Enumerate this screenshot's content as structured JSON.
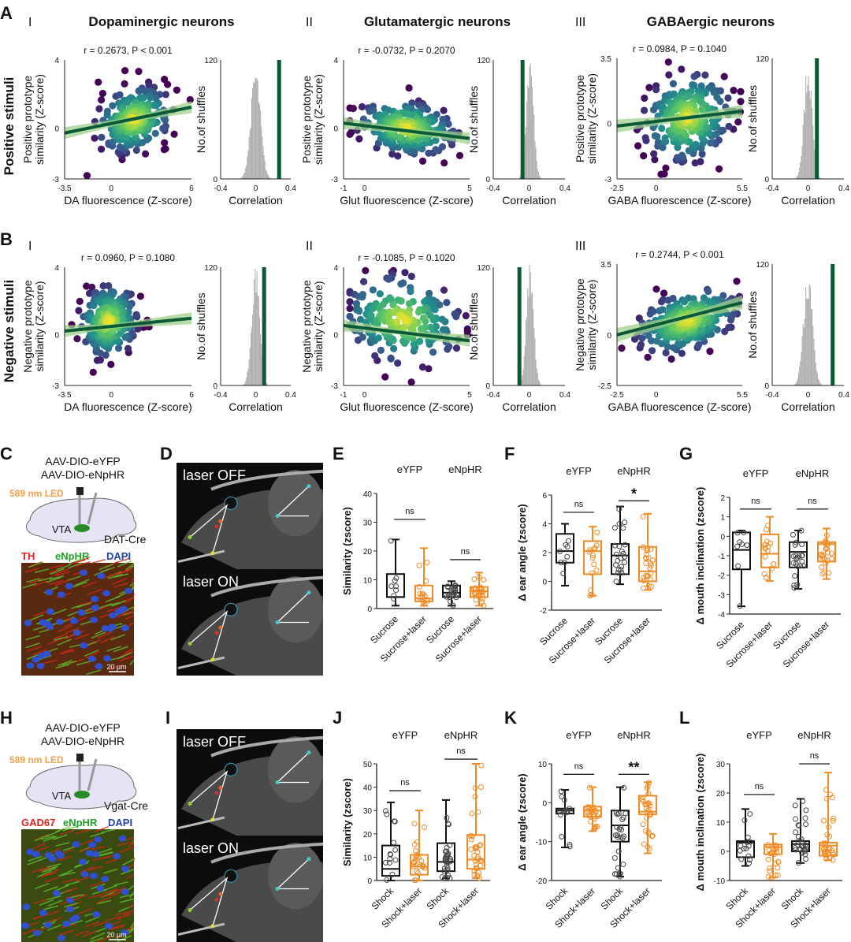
{
  "panel_letters": [
    "A",
    "B",
    "C",
    "D",
    "E",
    "F",
    "G",
    "H",
    "I",
    "J",
    "K",
    "L"
  ],
  "row_labels": {
    "A": "Positive stimuli",
    "B": "Negative stimuli"
  },
  "column_headers": [
    {
      "roman": "I",
      "title": "Dopaminergic neurons"
    },
    {
      "roman": "II",
      "title": "Glutamatergic neurons"
    },
    {
      "roman": "III",
      "title": "GABAergic neurons"
    }
  ],
  "colors": {
    "fit_line": "#0b5a36",
    "ci_band": "#9fcf8c",
    "hist": "#b0b0b0",
    "observed": "#0b5a36",
    "eyfp": "#111111",
    "enphr": "#f08a24",
    "led": "#f5a04a"
  },
  "chart_data": [
    {
      "id": "A-I",
      "type": "scatter",
      "stat": "r = 0.2673, P < 0.001",
      "xlabel": "DA fluorescence (Z-score)",
      "ylabel": [
        "Positive prototype",
        "similarity (Z-score)"
      ],
      "xlim": [
        -3.5,
        6
      ],
      "ylim": [
        -3,
        4
      ],
      "xticks": [
        -3.5,
        0,
        6
      ],
      "yticks": [
        4,
        0,
        -3
      ],
      "fit": {
        "slope": 0.16,
        "intercept": 0.26
      },
      "cloud": {
        "cx": 1.7,
        "cy": 0.5,
        "sx": 1.3,
        "sy": 0.9,
        "n": 260
      },
      "hist": {
        "type": "histogram",
        "xlabel": "Correlation",
        "ylabel": "No.of shuffles",
        "xlim": [
          -0.4,
          0.4
        ],
        "ylim": [
          0,
          120
        ],
        "xticks": [
          -0.4,
          0,
          0.4
        ],
        "yticks": [
          120,
          0
        ],
        "null_mean": 0.0,
        "null_sd": 0.055,
        "peak": 100,
        "observed_r": 0.2673
      }
    },
    {
      "id": "A-II",
      "type": "scatter",
      "stat": "r = -0.0732, P = 0.2070",
      "xlabel": "Glut fluorescence (Z-score)",
      "ylabel": [
        "Positive prototype",
        "similarity (Z-score)"
      ],
      "xlim": [
        -1,
        5
      ],
      "ylim": [
        -3,
        4
      ],
      "xticks": [
        -1,
        0,
        5
      ],
      "yticks": [
        4,
        0,
        -3
      ],
      "fit": {
        "slope": -0.15,
        "intercept": 0.13
      },
      "cloud": {
        "cx": 2.0,
        "cy": 0.0,
        "sx": 1.1,
        "sy": 0.75,
        "n": 260
      },
      "hist": {
        "type": "histogram",
        "xlabel": "Correlation",
        "ylabel": "No.of shuffles",
        "xlim": [
          -0.4,
          0.4
        ],
        "ylim": [
          0,
          120
        ],
        "xticks": [
          -0.4,
          0,
          0.4
        ],
        "yticks": [
          120,
          0
        ],
        "null_mean": 0.01,
        "null_sd": 0.04,
        "peak": 110,
        "observed_r": -0.0732
      }
    },
    {
      "id": "A-III",
      "type": "scatter",
      "stat": "r = 0.0984, P = 0.1040",
      "xlabel": "GABA fluorescence (Z-score)",
      "ylabel": [
        "Positive prototype",
        "similarity (Z-score)"
      ],
      "xlim": [
        -2.5,
        5.5
      ],
      "ylim": [
        -3,
        3.5
      ],
      "xticks": [
        -2.5,
        0,
        5.5
      ],
      "yticks": [
        3.5,
        0,
        -3
      ],
      "fit": {
        "slope": 0.1,
        "intercept": 0.1
      },
      "cloud": {
        "cx": 2.0,
        "cy": 0.3,
        "sx": 1.3,
        "sy": 1.1,
        "n": 260
      },
      "hist": {
        "type": "histogram",
        "xlabel": "Correlation",
        "ylabel": "No.of shuffles",
        "xlim": [
          -0.4,
          0.4
        ],
        "ylim": [
          0,
          120
        ],
        "xticks": [
          -0.4,
          0,
          0.4
        ],
        "yticks": [
          120,
          0
        ],
        "null_mean": 0.0,
        "null_sd": 0.045,
        "peak": 105,
        "observed_r": 0.0984
      }
    },
    {
      "id": "B-I",
      "type": "scatter",
      "stat": "r = 0.0960, P = 0.1080",
      "xlabel": "DA fluorescence (Z-score)",
      "ylabel": [
        "Negative prototype",
        "similarity (Z-score)"
      ],
      "xlim": [
        -3.5,
        6
      ],
      "ylim": [
        -3,
        4
      ],
      "xticks": [
        -3.5,
        0,
        6
      ],
      "yticks": [
        4,
        0,
        -3
      ],
      "fit": {
        "slope": 0.08,
        "intercept": 0.5
      },
      "cloud": {
        "cx": -0.2,
        "cy": 0.8,
        "sx": 1.0,
        "sy": 1.0,
        "n": 240
      },
      "hist": {
        "type": "histogram",
        "xlabel": "Correlation",
        "ylabel": "No.of shuffles",
        "xlim": [
          -0.4,
          0.4
        ],
        "ylim": [
          0,
          120
        ],
        "xticks": [
          -0.4,
          0,
          0.4
        ],
        "yticks": [
          120,
          0
        ],
        "null_mean": 0.0,
        "null_sd": 0.045,
        "peak": 110,
        "observed_r": 0.096
      }
    },
    {
      "id": "B-II",
      "type": "scatter",
      "stat": "r = -0.1085, P = 0.1020",
      "xlabel": "Glut fluorescence (Z-score)",
      "ylabel": [
        "Negative prototype",
        "similarity (Z-score)"
      ],
      "xlim": [
        -1,
        5
      ],
      "ylim": [
        -3,
        4
      ],
      "xticks": [
        -1,
        0,
        5
      ],
      "yticks": [
        4,
        0,
        -3
      ],
      "fit": {
        "slope": -0.15,
        "intercept": 0.4
      },
      "cloud": {
        "cx": 1.8,
        "cy": 0.9,
        "sx": 1.3,
        "sy": 1.2,
        "n": 220
      },
      "hist": {
        "type": "histogram",
        "xlabel": "Correlation",
        "ylabel": "No.of shuffles",
        "xlim": [
          -0.4,
          0.4
        ],
        "ylim": [
          0,
          120
        ],
        "xticks": [
          -0.4,
          0,
          0.4
        ],
        "yticks": [
          120,
          0
        ],
        "null_mean": 0.01,
        "null_sd": 0.04,
        "peak": 110,
        "observed_r": -0.1085
      }
    },
    {
      "id": "B-III",
      "type": "scatter",
      "stat": "r = 0.2744, P < 0.001",
      "xlabel": "GABA fluorescence (Z-score)",
      "ylabel": [
        "Negative prototype",
        "similarity (Z-score)"
      ],
      "xlim": [
        -2.5,
        5.5
      ],
      "ylim": [
        -2.5,
        3.5
      ],
      "xticks": [
        -2.5,
        0,
        5.5
      ],
      "yticks": [
        3.5,
        0,
        -2.5
      ],
      "fit": {
        "slope": 0.2,
        "intercept": 0.5
      },
      "cloud": {
        "cx": 2.0,
        "cy": 0.7,
        "sx": 1.5,
        "sy": 0.7,
        "n": 260
      },
      "hist": {
        "type": "histogram",
        "xlabel": "Correlation",
        "ylabel": "No.of shuffles",
        "xlim": [
          -0.4,
          0.4
        ],
        "ylim": [
          0,
          120
        ],
        "xticks": [
          -0.4,
          0,
          0.4
        ],
        "yticks": [
          120,
          0
        ],
        "null_mean": 0.0,
        "null_sd": 0.05,
        "peak": 100,
        "observed_r": 0.2744
      }
    },
    {
      "id": "E",
      "type": "box",
      "ylabel": "Similarity  (zscore)",
      "ylim": [
        0,
        40
      ],
      "yticks": [
        0,
        10,
        20,
        30,
        40
      ],
      "groups": [
        "eYFP",
        "eNpHR"
      ],
      "categories": [
        "Sucrose",
        "Sucrose+laser",
        "Sucrose",
        "Sucrose+laser"
      ],
      "boxes": [
        [
          1,
          4,
          4,
          12,
          24
        ],
        [
          1,
          2.5,
          3.5,
          8,
          21
        ],
        [
          1,
          4,
          5.5,
          8,
          9.5
        ],
        [
          1,
          4,
          6,
          7.5,
          12.5
        ]
      ],
      "n": [
        8,
        14,
        22,
        24
      ],
      "sig": [
        {
          "pair": [
            0,
            1
          ],
          "label": "ns",
          "y": 31
        },
        {
          "pair": [
            2,
            3
          ],
          "label": "ns",
          "y": 17
        }
      ]
    },
    {
      "id": "F",
      "type": "box",
      "ylabel": "Δ ear angle (zscore)",
      "ylim": [
        -2,
        6
      ],
      "yticks": [
        -2,
        0,
        2,
        4,
        6
      ],
      "groups": [
        "eYFP",
        "eNpHR"
      ],
      "categories": [
        "Sucrose",
        "Sucrose+laser",
        "Sucrose",
        "Sucrose+laser"
      ],
      "boxes": [
        [
          -0.3,
          1.3,
          2.1,
          3.3,
          4
        ],
        [
          -1,
          0.5,
          2.1,
          2.8,
          3.8
        ],
        [
          -0.2,
          0.5,
          1.8,
          2.6,
          5.2
        ],
        [
          -0.6,
          0,
          0.7,
          2.4,
          4.7
        ]
      ],
      "n": [
        8,
        14,
        22,
        24
      ],
      "sig": [
        {
          "pair": [
            0,
            1
          ],
          "label": "ns",
          "y": 4.8
        },
        {
          "pair": [
            2,
            3
          ],
          "label": "*",
          "y": 5.6
        }
      ]
    },
    {
      "id": "G",
      "type": "box",
      "ylabel": "Δ mouth inclination (zscore)",
      "ylim": [
        -4,
        2
      ],
      "yticks": [
        -4,
        -3,
        -2,
        -1,
        0,
        1,
        2
      ],
      "groups": [
        "eYFP",
        "eNpHR"
      ],
      "categories": [
        "Sucrose",
        "Sucrose+laser",
        "Sucrose",
        "Sucrose+laser"
      ],
      "boxes": [
        [
          -3.6,
          -1.7,
          -0.7,
          0.2,
          0.3
        ],
        [
          -2.3,
          -1.6,
          -0.9,
          0.1,
          1
        ],
        [
          -2.7,
          -1.6,
          -0.8,
          -0.3,
          0.3
        ],
        [
          -2.2,
          -1.3,
          -0.4,
          -0.3,
          0.4
        ]
      ],
      "n": [
        8,
        14,
        22,
        24
      ],
      "sig": [
        {
          "pair": [
            0,
            1
          ],
          "label": "ns",
          "y": 1.4
        },
        {
          "pair": [
            2,
            3
          ],
          "label": "ns",
          "y": 1.4
        }
      ]
    },
    {
      "id": "J",
      "type": "box",
      "ylabel": "Similarity  (zscore)",
      "ylim": [
        0,
        50
      ],
      "yticks": [
        0,
        10,
        20,
        30,
        40,
        50
      ],
      "groups": [
        "eYFP",
        "eNpHR"
      ],
      "categories": [
        "Shock",
        "Shock+laser",
        "Shock",
        "Shock+laser"
      ],
      "boxes": [
        [
          0,
          2,
          5,
          15,
          33.5
        ],
        [
          0,
          2.5,
          6,
          11,
          30
        ],
        [
          1,
          4,
          8,
          16,
          34.5
        ],
        [
          1,
          5,
          9,
          19.5,
          50
        ]
      ],
      "n": [
        14,
        24,
        30,
        32
      ],
      "sig": [
        {
          "pair": [
            0,
            1
          ],
          "label": "ns",
          "y": 38.5
        },
        {
          "pair": [
            2,
            3
          ],
          "label": "ns",
          "y": 52
        }
      ]
    },
    {
      "id": "K",
      "type": "box",
      "ylabel": "Δ ear angle (zscore)",
      "ylim": [
        -20,
        10
      ],
      "yticks": [
        -20,
        -10,
        0,
        10
      ],
      "groups": [
        "eYFP",
        "eNpHR"
      ],
      "categories": [
        "Shock",
        "Shock+laser",
        "Shock",
        "Shock+laser"
      ],
      "boxes": [
        [
          -11.5,
          -2.8,
          -2,
          -1.5,
          3.3
        ],
        [
          -7.3,
          -3.6,
          -2,
          -1,
          4
        ],
        [
          -19,
          -10,
          -5.8,
          -2,
          4
        ],
        [
          -13,
          -3,
          -2.3,
          1.8,
          5.3
        ]
      ],
      "n": [
        14,
        24,
        26,
        28
      ],
      "sig": [
        {
          "pair": [
            0,
            1
          ],
          "label": "ns",
          "y": 7.3
        },
        {
          "pair": [
            2,
            3
          ],
          "label": "**",
          "y": 7.3
        }
      ]
    },
    {
      "id": "L",
      "type": "box",
      "ylabel": "Δ mouth inclination (zscore)",
      "ylim": [
        -10,
        30
      ],
      "yticks": [
        -10,
        0,
        10,
        20,
        30
      ],
      "groups": [
        "eYFP",
        "eNpHR"
      ],
      "categories": [
        "Shock",
        "Shock+laser",
        "Shock",
        "Shock+laser"
      ],
      "boxes": [
        [
          -5,
          -2,
          3,
          3.5,
          14.5
        ],
        [
          -9,
          -1,
          1.5,
          2.3,
          6
        ],
        [
          -4,
          0,
          2.5,
          3.5,
          18
        ],
        [
          -3,
          -1.5,
          2,
          3,
          27
        ]
      ],
      "n": [
        14,
        24,
        30,
        32
      ],
      "sig": [
        {
          "pair": [
            0,
            1
          ],
          "label": "ns",
          "y": 19.5
        },
        {
          "pair": [
            2,
            3
          ],
          "label": "ns",
          "y": 30
        }
      ]
    }
  ],
  "panel_C": {
    "virus": [
      "AAV-DIO-eYFP",
      "AAV-DIO-eNpHR"
    ],
    "led": "589 nm LED",
    "region": "VTA",
    "line": "DAT-Cre",
    "stains": [
      "TH",
      "eNpHR",
      "DAPI"
    ],
    "scale": "20 μm"
  },
  "panel_H": {
    "virus": [
      "AAV-DIO-eYFP",
      "AAV-DIO-eNpHR"
    ],
    "led": "589 nm LED",
    "region": "VTA",
    "line": "Vgat-Cre",
    "stains": [
      "GAD67",
      "eNpHR",
      "DAPI"
    ],
    "scale": "20 μm"
  },
  "panel_D": {
    "labels": [
      "laser OFF",
      "laser ON"
    ]
  },
  "panel_I": {
    "labels": [
      "laser OFF",
      "laser ON"
    ]
  }
}
